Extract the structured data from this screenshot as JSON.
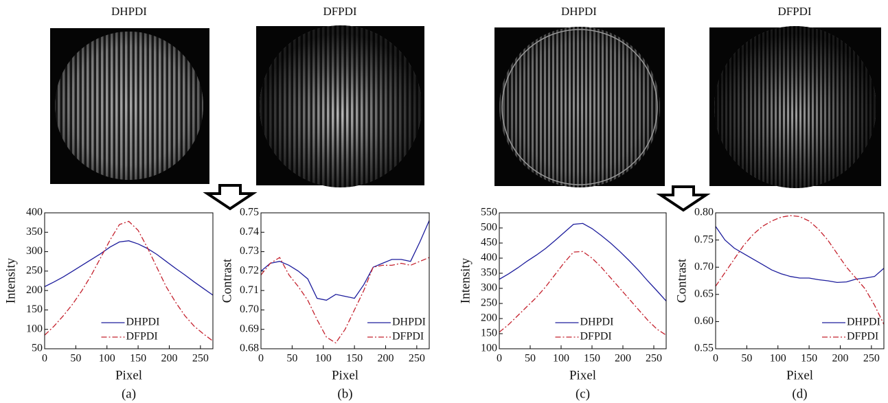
{
  "images": [
    {
      "title": "DHPDI"
    },
    {
      "title": "DFPDI"
    },
    {
      "title": "DHPDI"
    },
    {
      "title": "DFPDI"
    }
  ],
  "chart_data": [
    {
      "type": "line",
      "label": "(a)",
      "x_label": "Pixel",
      "y_label": "Intensity",
      "x": [
        0,
        15,
        30,
        45,
        60,
        75,
        90,
        105,
        120,
        135,
        150,
        165,
        180,
        195,
        210,
        225,
        240,
        255,
        270
      ],
      "series": [
        {
          "name": "DHPDI",
          "color": "#1c1c9c",
          "style": "solid",
          "values": [
            210,
            222,
            235,
            250,
            265,
            280,
            295,
            312,
            325,
            328,
            320,
            308,
            293,
            275,
            257,
            240,
            222,
            205,
            188
          ]
        },
        {
          "name": "DFPDI",
          "color": "#c4202c",
          "style": "dashdot",
          "values": [
            85,
            108,
            135,
            165,
            200,
            240,
            285,
            330,
            370,
            378,
            355,
            310,
            260,
            210,
            170,
            135,
            108,
            88,
            70
          ]
        }
      ],
      "xlim": [
        0,
        270
      ],
      "xticks": [
        0,
        50,
        100,
        150,
        200,
        250
      ],
      "ylim": [
        50,
        400
      ],
      "yticks": [
        50,
        100,
        150,
        200,
        250,
        300,
        350,
        400
      ],
      "legend": "lower center"
    },
    {
      "type": "line",
      "label": "(b)",
      "x_label": "Pixel",
      "y_label": "Contrast",
      "x": [
        0,
        15,
        30,
        45,
        60,
        75,
        90,
        105,
        120,
        135,
        150,
        165,
        180,
        195,
        210,
        225,
        240,
        255,
        270
      ],
      "series": [
        {
          "name": "DHPDI",
          "color": "#1c1c9c",
          "style": "solid",
          "values": [
            0.72,
            0.724,
            0.725,
            0.723,
            0.72,
            0.716,
            0.706,
            0.705,
            0.708,
            0.707,
            0.706,
            0.713,
            0.722,
            0.724,
            0.726,
            0.726,
            0.725,
            0.735,
            0.746
          ]
        },
        {
          "name": "DFPDI",
          "color": "#c4202c",
          "style": "dashdot",
          "values": [
            0.718,
            0.724,
            0.727,
            0.718,
            0.712,
            0.705,
            0.695,
            0.686,
            0.683,
            0.69,
            0.7,
            0.71,
            0.722,
            0.723,
            0.723,
            0.724,
            0.723,
            0.725,
            0.727
          ]
        }
      ],
      "xlim": [
        0,
        270
      ],
      "xticks": [
        0,
        50,
        100,
        150,
        200,
        250
      ],
      "ylim": [
        0.68,
        0.75
      ],
      "yticks": [
        0.68,
        0.69,
        {
          "value": 0.7,
          "label": "0.70"
        },
        0.71,
        0.72,
        0.73,
        0.74,
        0.75
      ],
      "legend": "lower right"
    },
    {
      "type": "line",
      "label": "(c)",
      "x_label": "Pixel",
      "y_label": "Intensity",
      "x": [
        0,
        15,
        30,
        45,
        60,
        75,
        90,
        105,
        120,
        135,
        150,
        165,
        180,
        195,
        210,
        225,
        240,
        255,
        270
      ],
      "series": [
        {
          "name": "DHPDI",
          "color": "#1c1c9c",
          "style": "solid",
          "values": [
            330,
            348,
            368,
            390,
            410,
            432,
            458,
            485,
            512,
            515,
            498,
            475,
            450,
            422,
            392,
            360,
            325,
            292,
            258
          ]
        },
        {
          "name": "DFPDI",
          "color": "#c4202c",
          "style": "dashdot",
          "values": [
            155,
            180,
            210,
            240,
            270,
            305,
            345,
            385,
            420,
            422,
            400,
            370,
            335,
            300,
            265,
            230,
            195,
            165,
            145
          ]
        }
      ],
      "xlim": [
        0,
        270
      ],
      "xticks": [
        0,
        50,
        100,
        150,
        200,
        250
      ],
      "ylim": [
        100,
        550
      ],
      "yticks": [
        100,
        150,
        200,
        250,
        300,
        350,
        400,
        450,
        500,
        550
      ],
      "legend": "lower center"
    },
    {
      "type": "line",
      "label": "(d)",
      "x_label": "Pixel",
      "y_label": "Contrast",
      "x": [
        0,
        15,
        30,
        45,
        60,
        75,
        90,
        105,
        120,
        135,
        150,
        165,
        180,
        195,
        210,
        225,
        240,
        255,
        270
      ],
      "series": [
        {
          "name": "DHPDI",
          "color": "#1c1c9c",
          "style": "solid",
          "values": [
            0.775,
            0.75,
            0.735,
            0.725,
            0.715,
            0.705,
            0.695,
            0.688,
            0.683,
            0.68,
            0.68,
            0.677,
            0.675,
            0.672,
            0.673,
            0.678,
            0.68,
            0.683,
            0.698
          ]
        },
        {
          "name": "DFPDI",
          "color": "#c4202c",
          "style": "dashdot",
          "values": [
            0.665,
            0.69,
            0.715,
            0.74,
            0.76,
            0.775,
            0.785,
            0.792,
            0.795,
            0.793,
            0.785,
            0.77,
            0.75,
            0.725,
            0.7,
            0.68,
            0.66,
            0.63,
            0.595
          ]
        }
      ],
      "xlim": [
        0,
        270
      ],
      "xticks": [
        0,
        50,
        100,
        150,
        200,
        250
      ],
      "ylim": [
        0.55,
        0.8
      ],
      "yticks": [
        0.55,
        {
          "value": 0.6,
          "label": "0.60"
        },
        0.65,
        {
          "value": 0.7,
          "label": "0.70"
        },
        0.75,
        {
          "value": 0.8,
          "label": "0.80"
        }
      ],
      "legend": "lower right"
    }
  ]
}
